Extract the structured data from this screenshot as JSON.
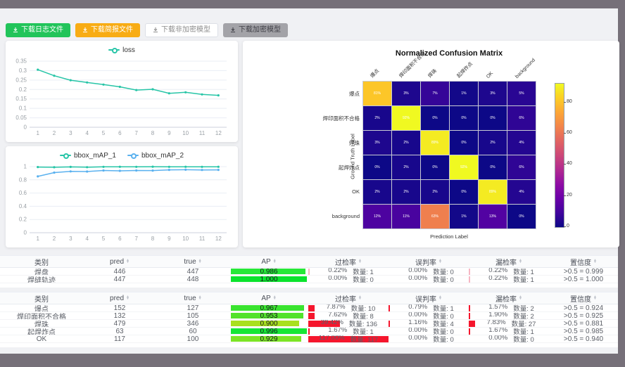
{
  "toolbar": {
    "buttons": [
      {
        "label": "下载日志文件"
      },
      {
        "label": "下载简报文件"
      },
      {
        "label": "下载非加密模型"
      },
      {
        "label": "下载加密模型"
      }
    ]
  },
  "chart_data": [
    {
      "type": "line",
      "x": [
        "1",
        "2",
        "3",
        "4",
        "5",
        "6",
        "7",
        "8",
        "9",
        "10",
        "11",
        "12"
      ],
      "series": [
        {
          "name": "loss",
          "color": "#27c5a7",
          "values": [
            0.305,
            0.273,
            0.249,
            0.237,
            0.226,
            0.214,
            0.197,
            0.201,
            0.18,
            0.185,
            0.174,
            0.169
          ]
        }
      ],
      "ylim": [
        0,
        0.35
      ],
      "yticks": [
        0,
        0.05,
        0.1,
        0.15,
        0.2,
        0.25,
        0.3,
        0.35
      ],
      "ytick_labels": [
        "0",
        "0.05",
        "0.1",
        "0.15",
        "0.2",
        "0.25",
        "0.3",
        "0.35"
      ],
      "legend_position": "top",
      "grid": true
    },
    {
      "type": "line",
      "x": [
        "1",
        "2",
        "3",
        "4",
        "5",
        "6",
        "7",
        "8",
        "9",
        "10",
        "11",
        "12"
      ],
      "series": [
        {
          "name": "bbox_mAP_1",
          "color": "#27c5a7",
          "values": [
            0.994,
            0.99,
            0.996,
            0.991,
            0.997,
            0.998,
            0.997,
            0.999,
            0.997,
            0.998,
            0.997,
            0.998
          ]
        },
        {
          "name": "bbox_mAP_2",
          "color": "#5ab1ef",
          "values": [
            0.852,
            0.91,
            0.928,
            0.925,
            0.941,
            0.936,
            0.941,
            0.94,
            0.951,
            0.953,
            0.95,
            0.951
          ]
        }
      ],
      "ylim": [
        0,
        1
      ],
      "yticks": [
        0,
        0.2,
        0.4,
        0.6,
        0.8,
        1
      ],
      "ytick_labels": [
        "0",
        "0.2",
        "0.4",
        "0.6",
        "0.8",
        "1"
      ],
      "legend_position": "top",
      "grid": true
    },
    {
      "type": "heatmap",
      "title": "Normalized Confusion Matrix",
      "xlabel": "Prediction Label",
      "ylabel": "Ground Truth Label",
      "labels": [
        "爆点",
        "焊印面积不合格",
        "焊珠",
        "起焊炸点",
        "OK",
        "background"
      ],
      "values_pct": [
        [
          81,
          3,
          7,
          1,
          3,
          5
        ],
        [
          2,
          92,
          0,
          0,
          0,
          6
        ],
        [
          3,
          2,
          89,
          0,
          2,
          4
        ],
        [
          0,
          2,
          0,
          92,
          0,
          6
        ],
        [
          2,
          2,
          2,
          0,
          89,
          4
        ],
        [
          12,
          11,
          63,
          1,
          13,
          0
        ]
      ],
      "vmax": 92,
      "colorbar_ticks": [
        0,
        20,
        40,
        60,
        80
      ],
      "colormap": "plasma"
    }
  ],
  "tables": {
    "headers": [
      {
        "label": "类别",
        "sortable": false
      },
      {
        "label": "pred",
        "sortable": true
      },
      {
        "label": "true",
        "sortable": true
      },
      {
        "label": "AP",
        "sortable": true
      },
      {
        "label": "过检率",
        "sortable": true
      },
      {
        "label": "误判率",
        "sortable": true
      },
      {
        "label": "漏检率",
        "sortable": true
      },
      {
        "label": "置信度",
        "sortable": true
      }
    ],
    "table1": {
      "rows": [
        {
          "cls": "焊盘",
          "pred": "446",
          "true": "447",
          "ap": "0.986",
          "ap_value": 0.986,
          "ap_color": "#27e838",
          "rates": [
            {
              "pct": "0.22%",
              "count": "数量: 1",
              "bar": 0.22,
              "bar_color": "#f7b7c4"
            },
            {
              "pct": "0.00%",
              "count": "数量: 0",
              "bar": 0,
              "bar_color": "#f7b7c4"
            },
            {
              "pct": "0.22%",
              "count": "数量: 1",
              "bar": 0.22,
              "bar_color": "#f7b7c4"
            }
          ],
          "conf": ">0.5 = 0.999"
        },
        {
          "cls": "焊缝轨迹",
          "pred": "447",
          "true": "448",
          "ap": "1.000",
          "ap_value": 1.0,
          "ap_color": "#0be32d",
          "rates": [
            {
              "pct": "0.00%",
              "count": "数量: 0",
              "bar": 0,
              "bar_color": "#f7b7c4"
            },
            {
              "pct": "0.00%",
              "count": "数量: 0",
              "bar": 0,
              "bar_color": "#f7b7c4"
            },
            {
              "pct": "0.22%",
              "count": "数量: 1",
              "bar": 0.22,
              "bar_color": "#f7b7c4"
            }
          ],
          "conf": ">0.5 = 1.000"
        }
      ]
    },
    "table2": {
      "rows": [
        {
          "cls": "爆点",
          "pred": "152",
          "true": "127",
          "ap": "0.967",
          "ap_value": 0.967,
          "ap_color": "#3ae42f",
          "rates": [
            {
              "pct": "7.87%",
              "count": "数量: 10",
              "bar": 7.87,
              "bar_color": "#f5162d"
            },
            {
              "pct": "0.79%",
              "count": "数量: 1",
              "bar": 0.79,
              "bar_color": "#f5162d"
            },
            {
              "pct": "1.57%",
              "count": "数量: 2",
              "bar": 1.57,
              "bar_color": "#f5162d"
            }
          ],
          "conf": ">0.5 = 0.924"
        },
        {
          "cls": "焊印面积不合格",
          "pred": "132",
          "true": "105",
          "ap": "0.953",
          "ap_value": 0.953,
          "ap_color": "#52e22b",
          "rates": [
            {
              "pct": "7.62%",
              "count": "数量: 8",
              "bar": 7.62,
              "bar_color": "#f5162d"
            },
            {
              "pct": "0.00%",
              "count": "数量: 0",
              "bar": 0,
              "bar_color": "#f5162d"
            },
            {
              "pct": "1.90%",
              "count": "数量: 2",
              "bar": 1.9,
              "bar_color": "#f5162d"
            }
          ],
          "conf": ">0.5 = 0.925"
        },
        {
          "cls": "焊珠",
          "pred": "479",
          "true": "346",
          "ap": "0.900",
          "ap_value": 0.9,
          "ap_color": "#a8e01f",
          "rates": [
            {
              "pct": "39.42%",
              "count": "数量: 136",
              "bar": 39.42,
              "bar_color": "#f5162d"
            },
            {
              "pct": "1.16%",
              "count": "数量: 4",
              "bar": 1.16,
              "bar_color": "#f5162d"
            },
            {
              "pct": "7.83%",
              "count": "数量: 27",
              "bar": 7.83,
              "bar_color": "#f5162d"
            }
          ],
          "conf": ">0.5 = 0.881"
        },
        {
          "cls": "起焊炸点",
          "pred": "63",
          "true": "60",
          "ap": "0.996",
          "ap_value": 0.996,
          "ap_color": "#16e636",
          "rates": [
            {
              "pct": "1.67%",
              "count": "数量: 1",
              "bar": 1.67,
              "bar_color": "#f5162d"
            },
            {
              "pct": "0.00%",
              "count": "数量: 0",
              "bar": 0,
              "bar_color": "#f5162d"
            },
            {
              "pct": "1.67%",
              "count": "数量: 1",
              "bar": 1.67,
              "bar_color": "#f5162d"
            }
          ],
          "conf": ">0.5 = 0.985"
        },
        {
          "cls": "OK",
          "pred": "117",
          "true": "100",
          "ap": "0.929",
          "ap_value": 0.929,
          "ap_color": "#7ce426",
          "rates": [
            {
              "pct": "117.00%",
              "count": "数量: 117",
              "bar": 100,
              "bar_color": "#f5162d"
            },
            {
              "pct": "0.00%",
              "count": "数量: 0",
              "bar": 0,
              "bar_color": "#f5162d"
            },
            {
              "pct": "0.00%",
              "count": "数量: 0",
              "bar": 0,
              "bar_color": "#f5162d"
            }
          ],
          "conf": ">0.5 = 0.940"
        }
      ]
    }
  }
}
